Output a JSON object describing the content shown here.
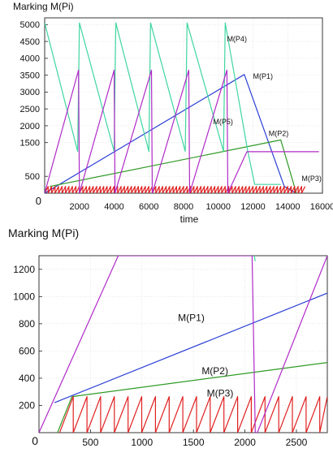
{
  "chart_data": [
    {
      "type": "line",
      "title": "Marking M(Pi)",
      "xlabel": "time",
      "ylabel": "",
      "xlim": [
        0,
        16000
      ],
      "ylim": [
        0,
        5200
      ],
      "xticks": [
        0,
        2000,
        4000,
        6000,
        8000,
        10000,
        12000,
        14000,
        16000
      ],
      "yticks": [
        500,
        1500,
        2000,
        2500,
        3000,
        3500,
        4000,
        4500,
        5000
      ],
      "origin_label": "0",
      "grid": true,
      "colors": {
        "P1": "#2b3fd6",
        "P2": "#2f9a25",
        "P3": "#e02020",
        "P4": "#3fd6a0",
        "P5": "#b02ac8"
      },
      "series": [
        {
          "name": "M(P1)",
          "x": [
            0,
            11500,
            13800,
            14500
          ],
          "y": [
            0,
            3520,
            200,
            0
          ]
        },
        {
          "name": "M(P2)",
          "x": [
            300,
            13600,
            14500
          ],
          "y": [
            200,
            1580,
            0
          ]
        },
        {
          "name": "M(P3)",
          "sawtooth": {
            "x_start": 0,
            "x_end": 15000,
            "period": 200,
            "min": 0,
            "max": 200
          }
        },
        {
          "name": "M(P4)",
          "x": [
            0,
            1900,
            2000,
            4000,
            4100,
            6000,
            6100,
            8100,
            8200,
            10300,
            10400,
            11700,
            12100,
            13600
          ],
          "y": [
            5050,
            1240,
            5050,
            1240,
            5050,
            1240,
            5050,
            1240,
            5050,
            1240,
            5050,
            1240,
            260,
            260
          ]
        },
        {
          "name": "M(P5)",
          "x": [
            0,
            1950,
            2000,
            4000,
            4050,
            6150,
            6200,
            8300,
            8350,
            10500,
            10550,
            11650,
            15800
          ],
          "y": [
            0,
            3650,
            0,
            3650,
            0,
            3650,
            0,
            3650,
            0,
            3650,
            0,
            1230,
            1230
          ]
        }
      ],
      "annotations": [
        {
          "text": "M(P4)",
          "x": 10500,
          "y": 4500
        },
        {
          "text": "M(P1)",
          "x": 12000,
          "y": 3400
        },
        {
          "text": "M(P5)",
          "x": 9700,
          "y": 2050
        },
        {
          "text": "M(P2)",
          "x": 12900,
          "y": 1700
        },
        {
          "text": "M(P3)",
          "x": 14800,
          "y": 360
        }
      ]
    },
    {
      "type": "line",
      "title": "Marking M(Pi)",
      "xlabel": "",
      "ylabel": "",
      "xlim": [
        0,
        2800
      ],
      "ylim": [
        0,
        1300
      ],
      "xticks": [
        500,
        1000,
        1500,
        2000,
        2500
      ],
      "yticks": [
        200,
        400,
        600,
        800,
        1000,
        1200
      ],
      "origin_label": "0",
      "grid": true,
      "colors": {
        "P1": "#2b3fd6",
        "P2": "#2f9a25",
        "P3": "#e02020",
        "P4": "#3fd6a0",
        "P5": "#b02ac8"
      },
      "series": [
        {
          "name": "M(P1)",
          "x": [
            150,
            2800
          ],
          "y": [
            220,
            1025
          ]
        },
        {
          "name": "M(P2)",
          "x": [
            180,
            320,
            2800
          ],
          "y": [
            0,
            265,
            515
          ]
        },
        {
          "name": "M(P3)",
          "sawtooth": {
            "x_start": 200,
            "x_end": 2800,
            "period": 133,
            "min": 0,
            "max": 265
          }
        },
        {
          "name": "M(P4)",
          "x": [
            2090,
            2100
          ],
          "y": [
            1300,
            1260
          ]
        },
        {
          "name": "M(P5)",
          "x": [
            0,
            770,
            2070,
            2100,
            2120,
            2800
          ],
          "y": [
            0,
            1300,
            1300,
            0,
            0,
            1300
          ]
        }
      ],
      "annotations": [
        {
          "text": "M(P1)",
          "x": 1350,
          "y": 820
        },
        {
          "text": "M(P2)",
          "x": 1580,
          "y": 430
        },
        {
          "text": "M(P3)",
          "x": 1630,
          "y": 265
        }
      ]
    }
  ]
}
